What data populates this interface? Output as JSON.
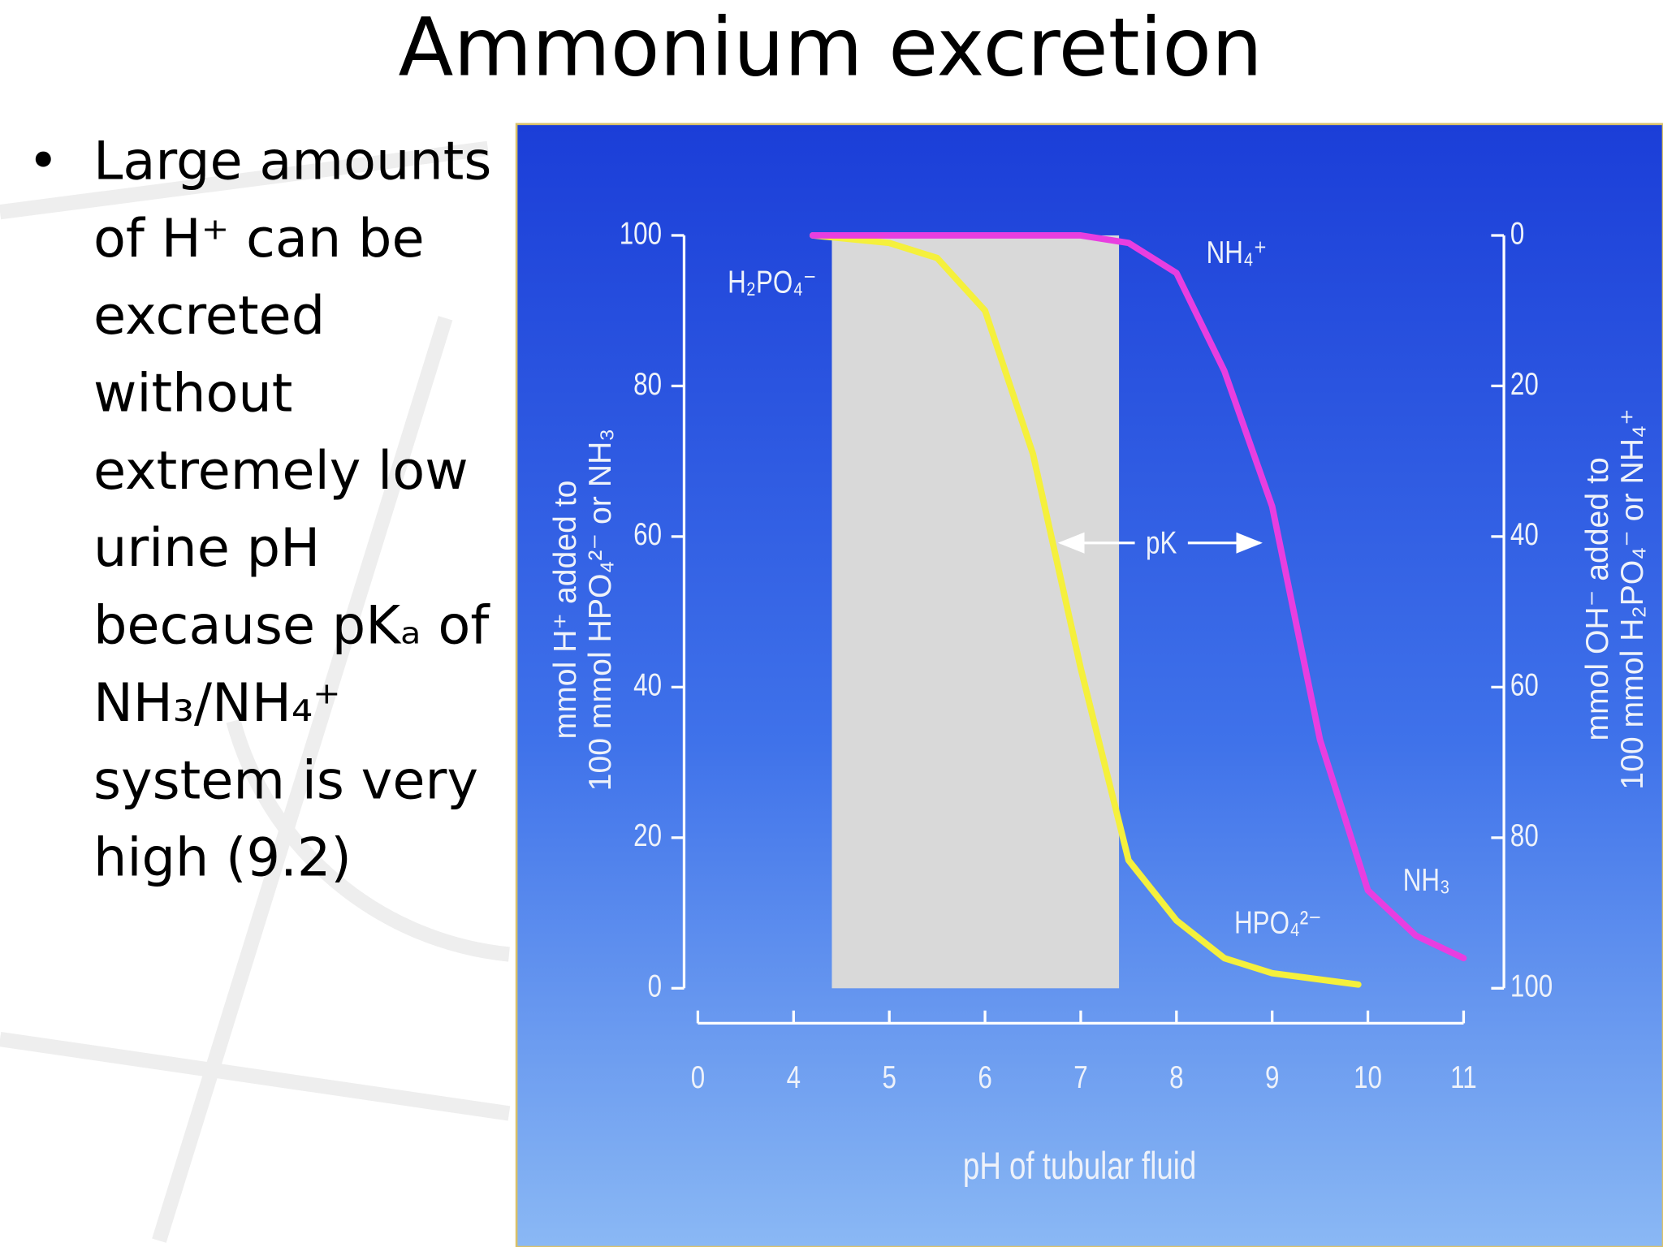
{
  "slide": {
    "title": "Ammonium excretion",
    "bullet_lines": [
      "Large amounts",
      "of H⁺ can be",
      "excreted",
      "without",
      "extremely low",
      "urine pH",
      "because pKₐ of",
      "NH₃/NH₄⁺",
      "system is very",
      "high (9.2)"
    ]
  },
  "chart_data": {
    "type": "line",
    "xlabel": "pH of tubular fluid",
    "ylabel": [
      "mmol H⁺ added to",
      "100 mmol HPO₄²⁻ or NH₃"
    ],
    "y2label": [
      "mmol OH⁻ added to",
      "100 mmol H₂PO₄⁻ or NH₄⁺"
    ],
    "xlim": [
      0,
      11
    ],
    "xticks": [
      0,
      4,
      5,
      6,
      7,
      8,
      9,
      10,
      11
    ],
    "x_axis_break": true,
    "ylim": [
      0,
      100
    ],
    "yticks": [
      0,
      20,
      40,
      60,
      80,
      100
    ],
    "y2lim": [
      100,
      0
    ],
    "y2ticks": [
      0,
      20,
      40,
      60,
      80,
      100
    ],
    "shaded_region": {
      "x": [
        4.4,
        7.4
      ],
      "color": "#d9d9d9"
    },
    "series": [
      {
        "color": "#f5f03c",
        "x": [
          4.2,
          5,
          5.5,
          6,
          6.5,
          7,
          7.5,
          8,
          8.5,
          9,
          9.9
        ],
        "values": [
          100,
          99,
          97,
          90,
          71,
          42.5,
          17,
          9,
          4,
          2,
          0.5
        ]
      },
      {
        "color": "#e83ee0",
        "x": [
          4.2,
          5,
          6,
          7,
          7.5,
          8,
          8.5,
          9,
          9.5,
          10,
          10.5,
          11
        ],
        "values": [
          100,
          100,
          100,
          100,
          99,
          95,
          82,
          64,
          33,
          13,
          7,
          4
        ]
      }
    ],
    "annotations": [
      "H₂PO₄⁻",
      "NH₄⁺",
      "pK",
      "NH₃",
      "HPO₄²⁻"
    ]
  }
}
